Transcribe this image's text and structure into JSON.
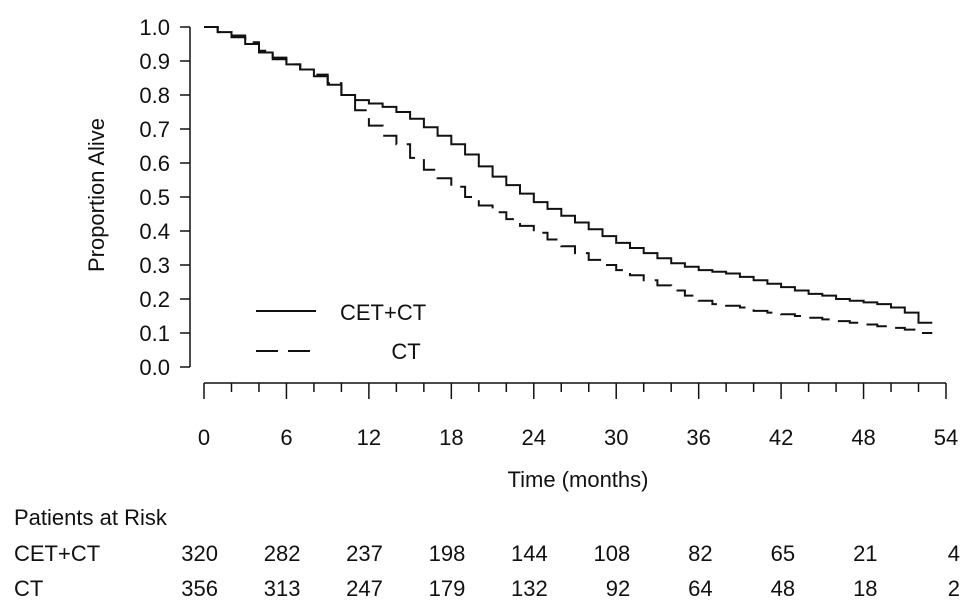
{
  "chart_data": {
    "type": "line",
    "title": "",
    "xlabel": "Time (months)",
    "ylabel": "Proportion Alive",
    "xlim": [
      0,
      54
    ],
    "ylim": [
      0,
      1.0
    ],
    "x_ticks": [
      "0",
      "6",
      "12",
      "18",
      "24",
      "30",
      "36",
      "42",
      "48",
      "54"
    ],
    "y_ticks": [
      "0.0",
      "0.1",
      "0.2",
      "0.3",
      "0.4",
      "0.5",
      "0.6",
      "0.7",
      "0.8",
      "0.9",
      "1.0"
    ],
    "grid": false,
    "legend_position": "bottom-left",
    "series": [
      {
        "name": "CET+CT",
        "style": "solid",
        "x": [
          0,
          1,
          2,
          3,
          4,
          5,
          6,
          7,
          8,
          9,
          10,
          11,
          12,
          13,
          14,
          15,
          16,
          17,
          18,
          19,
          20,
          21,
          22,
          23,
          24,
          25,
          26,
          27,
          28,
          29,
          30,
          31,
          32,
          33,
          34,
          35,
          36,
          37,
          38,
          39,
          40,
          41,
          42,
          43,
          44,
          45,
          46,
          47,
          48,
          49,
          50,
          51,
          52,
          53
        ],
        "y": [
          1.0,
          0.985,
          0.97,
          0.95,
          0.925,
          0.905,
          0.89,
          0.875,
          0.855,
          0.83,
          0.8,
          0.785,
          0.775,
          0.765,
          0.75,
          0.73,
          0.705,
          0.68,
          0.655,
          0.625,
          0.59,
          0.56,
          0.535,
          0.51,
          0.485,
          0.465,
          0.445,
          0.425,
          0.405,
          0.385,
          0.365,
          0.35,
          0.335,
          0.32,
          0.305,
          0.295,
          0.285,
          0.28,
          0.275,
          0.265,
          0.255,
          0.245,
          0.235,
          0.225,
          0.215,
          0.21,
          0.2,
          0.195,
          0.19,
          0.185,
          0.175,
          0.16,
          0.13,
          0.13
        ]
      },
      {
        "name": "CT",
        "style": "dashed",
        "x": [
          0,
          1,
          2,
          3,
          4,
          5,
          6,
          7,
          8,
          9,
          10,
          11,
          12,
          13,
          14,
          15,
          16,
          17,
          18,
          19,
          20,
          21,
          22,
          23,
          24,
          25,
          26,
          27,
          28,
          29,
          30,
          31,
          32,
          33,
          34,
          35,
          36,
          37,
          38,
          39,
          40,
          41,
          42,
          43,
          44,
          45,
          46,
          47,
          48,
          49,
          50,
          51,
          52,
          53
        ],
        "y": [
          1.0,
          0.985,
          0.975,
          0.955,
          0.93,
          0.91,
          0.89,
          0.875,
          0.86,
          0.835,
          0.8,
          0.755,
          0.71,
          0.68,
          0.655,
          0.615,
          0.58,
          0.555,
          0.53,
          0.5,
          0.475,
          0.455,
          0.435,
          0.415,
          0.395,
          0.375,
          0.355,
          0.335,
          0.315,
          0.3,
          0.285,
          0.27,
          0.255,
          0.24,
          0.225,
          0.21,
          0.195,
          0.185,
          0.18,
          0.175,
          0.165,
          0.16,
          0.155,
          0.15,
          0.145,
          0.14,
          0.135,
          0.13,
          0.125,
          0.12,
          0.115,
          0.11,
          0.1,
          0.1
        ]
      }
    ],
    "patients_at_risk": {
      "title": "Patients at Risk",
      "x": [
        0,
        6,
        12,
        18,
        24,
        30,
        36,
        42,
        48,
        54
      ],
      "rows": [
        {
          "label": "CET+CT",
          "values": [
            "320",
            "282",
            "237",
            "198",
            "144",
            "108",
            "82",
            "65",
            "21",
            "4"
          ]
        },
        {
          "label": "CT",
          "values": [
            "356",
            "313",
            "247",
            "179",
            "132",
            "92",
            "64",
            "48",
            "18",
            "2"
          ]
        }
      ]
    }
  }
}
